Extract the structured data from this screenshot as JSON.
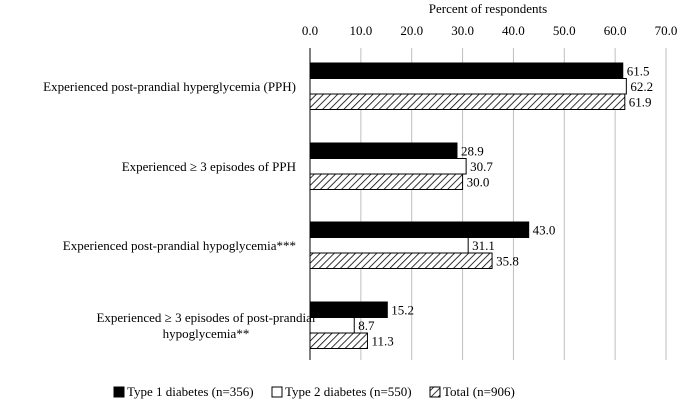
{
  "chart_data": {
    "type": "bar",
    "orientation": "horizontal",
    "title": "",
    "xlabel": "Percent of respondents",
    "ylabel": "",
    "xlim": [
      0,
      70
    ],
    "x_ticks": [
      "0.0",
      "10.0",
      "20.0",
      "30.0",
      "40.0",
      "50.0",
      "60.0",
      "70.0"
    ],
    "x_axis_position": "top",
    "grid": "vertical",
    "legend_position": "bottom",
    "categories": [
      [
        "Experienced post-prandial hyperglycemia (PPH)"
      ],
      [
        "Experienced ≥ 3 episodes of PPH"
      ],
      [
        "Experienced post-prandial hypoglycemia***"
      ],
      [
        "Experienced ≥ 3 episodes of post-prandial",
        "hypoglycemia**"
      ]
    ],
    "series": [
      {
        "name": "Type 1 diabetes (n=356)",
        "fill": "#000000",
        "values": [
          61.5,
          28.9,
          43.0,
          15.2
        ],
        "labels": [
          "61.5",
          "28.9",
          "43.0",
          "15.2"
        ]
      },
      {
        "name": "Type 2 diabetes (n=550)",
        "fill": "#ffffff",
        "values": [
          62.2,
          30.7,
          31.1,
          8.7
        ],
        "labels": [
          "62.2",
          "30.7",
          "31.1",
          "8.7"
        ]
      },
      {
        "name": "Total (n=906)",
        "fill": "hatch",
        "values": [
          61.9,
          30.0,
          35.8,
          11.3
        ],
        "labels": [
          "61.9",
          "30.0",
          "35.8",
          "11.3"
        ]
      }
    ]
  }
}
